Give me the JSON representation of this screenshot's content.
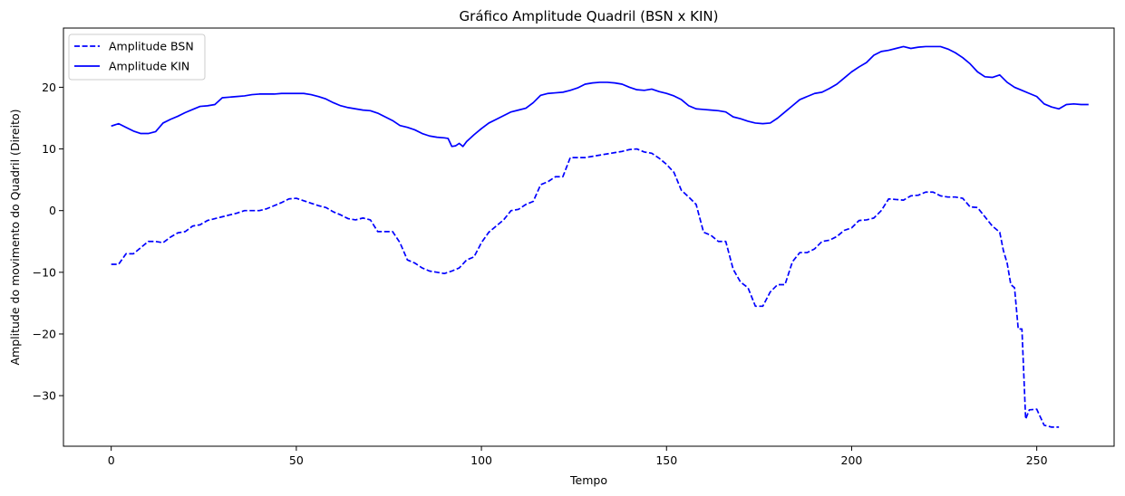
{
  "chart_data": {
    "type": "line",
    "title": "Gráfico Amplitude Quadril (BSN x KIN)",
    "xlabel": "Tempo",
    "ylabel": "Amplitude do movimento do Quadril (Direito)",
    "xlim": [
      -12.9,
      270.9
    ],
    "ylim": [
      -38.2,
      29.6
    ],
    "xticks": [
      0,
      50,
      100,
      150,
      200,
      250
    ],
    "yticks": [
      -30,
      -20,
      -10,
      0,
      10,
      20
    ],
    "grid": false,
    "legend_position": "top-left",
    "series": [
      {
        "name": "Amplitude BSN",
        "color": "#0000ff",
        "style": "dashed",
        "points": [
          [
            0,
            -8.7
          ],
          [
            2,
            -8.7
          ],
          [
            4,
            -7
          ],
          [
            6,
            -7
          ],
          [
            8,
            -6
          ],
          [
            10,
            -5
          ],
          [
            12,
            -5
          ],
          [
            14,
            -5.2
          ],
          [
            16,
            -4.3
          ],
          [
            18,
            -3.6
          ],
          [
            20,
            -3.4
          ],
          [
            22,
            -2.5
          ],
          [
            24,
            -2.3
          ],
          [
            26,
            -1.6
          ],
          [
            28,
            -1.3
          ],
          [
            30,
            -1
          ],
          [
            32,
            -0.7
          ],
          [
            34,
            -0.4
          ],
          [
            36,
            0
          ],
          [
            38,
            0
          ],
          [
            40,
            0
          ],
          [
            42,
            0.3
          ],
          [
            44,
            0.8
          ],
          [
            46,
            1.3
          ],
          [
            48,
            1.9
          ],
          [
            50,
            2
          ],
          [
            52,
            1.6
          ],
          [
            54,
            1.2
          ],
          [
            56,
            0.8
          ],
          [
            58,
            0.5
          ],
          [
            60,
            -0.2
          ],
          [
            62,
            -0.7
          ],
          [
            64,
            -1.3
          ],
          [
            66,
            -1.5
          ],
          [
            68,
            -1.2
          ],
          [
            70,
            -1.5
          ],
          [
            72,
            -3.4
          ],
          [
            74,
            -3.4
          ],
          [
            76,
            -3.4
          ],
          [
            78,
            -5.2
          ],
          [
            80,
            -8
          ],
          [
            82,
            -8.5
          ],
          [
            84,
            -9.3
          ],
          [
            86,
            -9.8
          ],
          [
            88,
            -10
          ],
          [
            90,
            -10.2
          ],
          [
            92,
            -9.8
          ],
          [
            94,
            -9.3
          ],
          [
            96,
            -8
          ],
          [
            98,
            -7.5
          ],
          [
            100,
            -5.2
          ],
          [
            102,
            -3.5
          ],
          [
            104,
            -2.5
          ],
          [
            106,
            -1.5
          ],
          [
            108,
            0
          ],
          [
            110,
            0.2
          ],
          [
            112,
            1
          ],
          [
            114,
            1.5
          ],
          [
            116,
            4.2
          ],
          [
            118,
            4.7
          ],
          [
            120,
            5.5
          ],
          [
            122,
            5.5
          ],
          [
            124,
            8.6
          ],
          [
            126,
            8.6
          ],
          [
            128,
            8.6
          ],
          [
            130,
            8.8
          ],
          [
            132,
            9
          ],
          [
            134,
            9.2
          ],
          [
            136,
            9.4
          ],
          [
            138,
            9.6
          ],
          [
            140,
            9.9
          ],
          [
            142,
            10
          ],
          [
            144,
            9.5
          ],
          [
            146,
            9.3
          ],
          [
            148,
            8.5
          ],
          [
            150,
            7.5
          ],
          [
            152,
            6.2
          ],
          [
            154,
            3.3
          ],
          [
            156,
            2.2
          ],
          [
            158,
            1
          ],
          [
            160,
            -3.5
          ],
          [
            162,
            -4
          ],
          [
            164,
            -5
          ],
          [
            166,
            -5
          ],
          [
            168,
            -9.5
          ],
          [
            170,
            -11.6
          ],
          [
            172,
            -12.5
          ],
          [
            174,
            -15.5
          ],
          [
            176,
            -15.5
          ],
          [
            178,
            -13.2
          ],
          [
            180,
            -12
          ],
          [
            182,
            -12
          ],
          [
            184,
            -8.3
          ],
          [
            186,
            -6.8
          ],
          [
            188,
            -6.8
          ],
          [
            190,
            -6.2
          ],
          [
            192,
            -5
          ],
          [
            194,
            -4.8
          ],
          [
            196,
            -4.2
          ],
          [
            198,
            -3.2
          ],
          [
            200,
            -2.8
          ],
          [
            202,
            -1.6
          ],
          [
            204,
            -1.5
          ],
          [
            206,
            -1.2
          ],
          [
            208,
            0
          ],
          [
            210,
            1.9
          ],
          [
            212,
            1.8
          ],
          [
            214,
            1.7
          ],
          [
            216,
            2.4
          ],
          [
            218,
            2.5
          ],
          [
            220,
            3
          ],
          [
            222,
            3
          ],
          [
            224,
            2.4
          ],
          [
            226,
            2.2
          ],
          [
            228,
            2.2
          ],
          [
            230,
            2
          ],
          [
            232,
            0.6
          ],
          [
            234,
            0.5
          ],
          [
            236,
            -1
          ],
          [
            238,
            -2.5
          ],
          [
            240,
            -3.5
          ],
          [
            241,
            -6.5
          ],
          [
            242,
            -8.5
          ],
          [
            243,
            -12
          ],
          [
            244,
            -12.5
          ],
          [
            245,
            -19.2
          ],
          [
            246,
            -19.2
          ],
          [
            247,
            -33.8
          ],
          [
            248,
            -32.3
          ],
          [
            250,
            -32.2
          ],
          [
            252,
            -34.8
          ],
          [
            254,
            -35.1
          ],
          [
            256,
            -35.1
          ]
        ]
      },
      {
        "name": "Amplitude KIN",
        "color": "#0000ff",
        "style": "solid",
        "points": [
          [
            0,
            13.7
          ],
          [
            2,
            14.1
          ],
          [
            4,
            13.5
          ],
          [
            6,
            12.9
          ],
          [
            8,
            12.5
          ],
          [
            10,
            12.5
          ],
          [
            12,
            12.8
          ],
          [
            14,
            14.2
          ],
          [
            16,
            14.8
          ],
          [
            18,
            15.3
          ],
          [
            20,
            15.9
          ],
          [
            22,
            16.4
          ],
          [
            24,
            16.9
          ],
          [
            26,
            17
          ],
          [
            28,
            17.2
          ],
          [
            30,
            18.3
          ],
          [
            32,
            18.4
          ],
          [
            34,
            18.5
          ],
          [
            36,
            18.6
          ],
          [
            38,
            18.8
          ],
          [
            40,
            18.9
          ],
          [
            42,
            18.9
          ],
          [
            44,
            18.9
          ],
          [
            46,
            19
          ],
          [
            48,
            19
          ],
          [
            50,
            19
          ],
          [
            52,
            19
          ],
          [
            54,
            18.8
          ],
          [
            56,
            18.5
          ],
          [
            58,
            18.1
          ],
          [
            60,
            17.5
          ],
          [
            62,
            17
          ],
          [
            64,
            16.7
          ],
          [
            66,
            16.5
          ],
          [
            68,
            16.3
          ],
          [
            70,
            16.2
          ],
          [
            72,
            15.8
          ],
          [
            74,
            15.2
          ],
          [
            76,
            14.6
          ],
          [
            78,
            13.8
          ],
          [
            80,
            13.5
          ],
          [
            82,
            13.1
          ],
          [
            84,
            12.5
          ],
          [
            86,
            12.1
          ],
          [
            88,
            11.9
          ],
          [
            90,
            11.8
          ],
          [
            91,
            11.7
          ],
          [
            92,
            10.4
          ],
          [
            93,
            10.5
          ],
          [
            94,
            10.9
          ],
          [
            95,
            10.4
          ],
          [
            96,
            11.2
          ],
          [
            98,
            12.3
          ],
          [
            100,
            13.3
          ],
          [
            102,
            14.2
          ],
          [
            104,
            14.8
          ],
          [
            106,
            15.4
          ],
          [
            108,
            16
          ],
          [
            110,
            16.3
          ],
          [
            112,
            16.6
          ],
          [
            114,
            17.5
          ],
          [
            116,
            18.7
          ],
          [
            118,
            19
          ],
          [
            120,
            19.1
          ],
          [
            122,
            19.2
          ],
          [
            124,
            19.5
          ],
          [
            126,
            19.9
          ],
          [
            128,
            20.5
          ],
          [
            130,
            20.7
          ],
          [
            132,
            20.8
          ],
          [
            134,
            20.8
          ],
          [
            136,
            20.7
          ],
          [
            138,
            20.5
          ],
          [
            140,
            20
          ],
          [
            142,
            19.6
          ],
          [
            144,
            19.5
          ],
          [
            146,
            19.7
          ],
          [
            148,
            19.3
          ],
          [
            150,
            19
          ],
          [
            152,
            18.6
          ],
          [
            154,
            18
          ],
          [
            156,
            17
          ],
          [
            158,
            16.5
          ],
          [
            160,
            16.4
          ],
          [
            162,
            16.3
          ],
          [
            164,
            16.2
          ],
          [
            166,
            16
          ],
          [
            168,
            15.2
          ],
          [
            170,
            14.9
          ],
          [
            172,
            14.5
          ],
          [
            174,
            14.2
          ],
          [
            176,
            14.1
          ],
          [
            178,
            14.2
          ],
          [
            180,
            15
          ],
          [
            182,
            16
          ],
          [
            184,
            17
          ],
          [
            186,
            18
          ],
          [
            188,
            18.5
          ],
          [
            190,
            19
          ],
          [
            192,
            19.2
          ],
          [
            194,
            19.8
          ],
          [
            196,
            20.5
          ],
          [
            198,
            21.5
          ],
          [
            200,
            22.5
          ],
          [
            202,
            23.3
          ],
          [
            204,
            24
          ],
          [
            206,
            25.2
          ],
          [
            208,
            25.8
          ],
          [
            210,
            26
          ],
          [
            212,
            26.3
          ],
          [
            214,
            26.6
          ],
          [
            216,
            26.3
          ],
          [
            218,
            26.5
          ],
          [
            220,
            26.6
          ],
          [
            222,
            26.6
          ],
          [
            224,
            26.6
          ],
          [
            226,
            26.2
          ],
          [
            228,
            25.6
          ],
          [
            230,
            24.8
          ],
          [
            232,
            23.8
          ],
          [
            234,
            22.5
          ],
          [
            236,
            21.7
          ],
          [
            238,
            21.6
          ],
          [
            240,
            22
          ],
          [
            242,
            20.8
          ],
          [
            244,
            20
          ],
          [
            246,
            19.5
          ],
          [
            248,
            19
          ],
          [
            250,
            18.5
          ],
          [
            252,
            17.3
          ],
          [
            254,
            16.8
          ],
          [
            256,
            16.5
          ],
          [
            258,
            17.2
          ],
          [
            260,
            17.3
          ],
          [
            262,
            17.2
          ],
          [
            264,
            17.2
          ]
        ]
      }
    ]
  }
}
